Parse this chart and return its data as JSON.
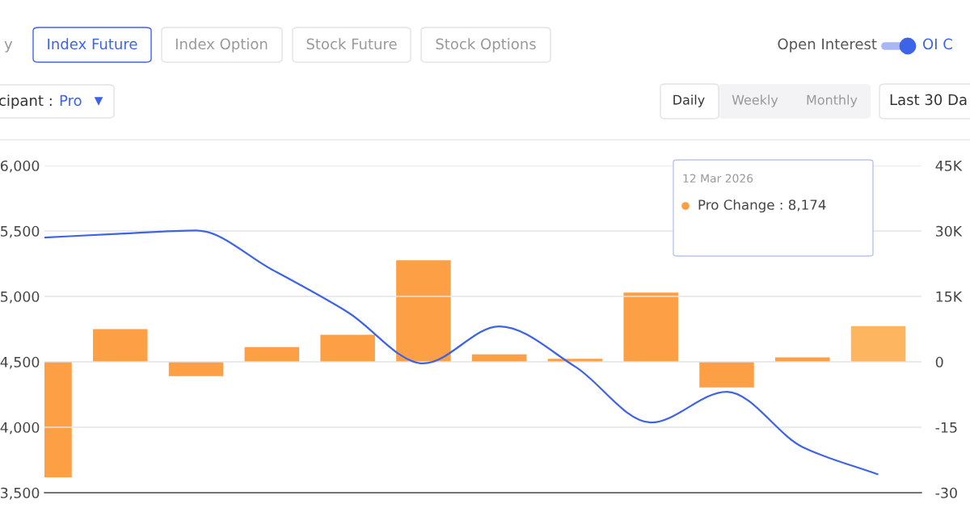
{
  "chart_data": {
    "type": "bar",
    "categories": [
      null,
      null,
      null,
      null,
      null,
      null,
      null,
      null,
      null,
      null,
      null,
      null
    ],
    "series": [
      {
        "type": "bar",
        "axis": "y2",
        "color": "#fd9f45",
        "colors": [
          "#fd9f45",
          "#fd9f45",
          "#fd9f45",
          "#fd9f45",
          "#fd9f45",
          "#fd9f45",
          "#fd9f45",
          "#fd9f45",
          "#fd9f45",
          "#fd9f45",
          "#fd9f45",
          "#fdb55f"
        ],
        "values": [
          -26.5,
          7.5,
          -3.3,
          3.4,
          6.2,
          23.3,
          1.7,
          0.7,
          15.9,
          -5.9,
          1.0,
          8.2
        ]
      },
      {
        "type": "line",
        "color": "#3d63e8",
        "values": [
          5450,
          5479,
          5504,
          5205,
          4880,
          4488,
          4771,
          4464,
          4036,
          4271,
          3849,
          3639
        ]
      }
    ],
    "ylim": [
      3500,
      6000
    ],
    "yticks": [
      {
        "value": 3500,
        "label": "3,500"
      },
      {
        "value": 4000,
        "label": "4,000"
      },
      {
        "value": 4500,
        "label": "4,500"
      },
      {
        "value": 5000,
        "label": "5,000"
      },
      {
        "value": 5500,
        "label": "5,500"
      },
      {
        "value": 6000,
        "label": "6,000"
      }
    ],
    "y2lim": [
      -30,
      45
    ],
    "y2ticks": [
      {
        "value": -30,
        "label": "-30"
      },
      {
        "value": -15,
        "label": "-15"
      },
      0,
      {
        "value": 15,
        "label": "15K"
      },
      {
        "value": 30,
        "label": "30K"
      },
      {
        "value": 45,
        "label": "45K"
      }
    ],
    "grid": "y",
    "tick_labels": "y",
    "annotations": [
      "y",
      "Index Future",
      "Index Option",
      "Stock Future",
      "Stock Options",
      "Open Interest",
      "OI C",
      "cipant :",
      "Pro",
      "Daily",
      "Weekly",
      "Monthly",
      "Last 30 Da",
      "12 Mar 2026",
      "Pro Change : 8,174"
    ]
  }
}
